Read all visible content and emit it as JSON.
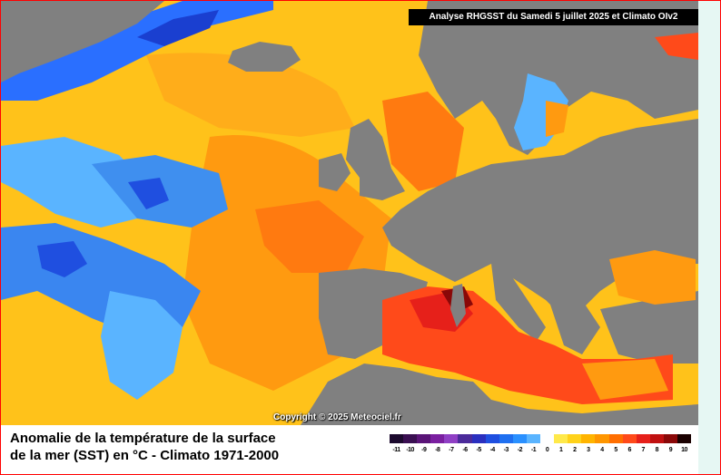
{
  "header": "Analyse RHGSST  du Samedi 5 juillet 2025 et Climato OIv2",
  "copyright": "Copyright © 2025 Meteociel.fr",
  "legend": {
    "title_line1": "Anomalie de la température de la surface",
    "title_line2": "de la mer (SST) en °C - Climato 1971-2000",
    "labels": [
      "-11",
      "-10",
      "-9",
      "-8",
      "-7",
      "-6",
      "-5",
      "-4",
      "-3",
      "-2",
      "-1",
      "0",
      "1",
      "2",
      "3",
      "4",
      "5",
      "6",
      "7",
      "8",
      "9",
      "10"
    ],
    "colors": [
      "#1c0a2e",
      "#3a0f52",
      "#5a1477",
      "#7a1fa0",
      "#8f3fc4",
      "#4b2a9a",
      "#2a2fbf",
      "#1f4fe0",
      "#1f6ff0",
      "#2a90ff",
      "#5ab4ff",
      "#ffffff",
      "#ffe94a",
      "#ffd21a",
      "#ffb400",
      "#ff9600",
      "#ff6e00",
      "#ff4a1a",
      "#e6201a",
      "#c01010",
      "#8a0808",
      "#1a0000"
    ]
  },
  "colors": {
    "ocean_base": "#ffc21a",
    "land": "#808080",
    "frame_border": "#ff0000"
  }
}
